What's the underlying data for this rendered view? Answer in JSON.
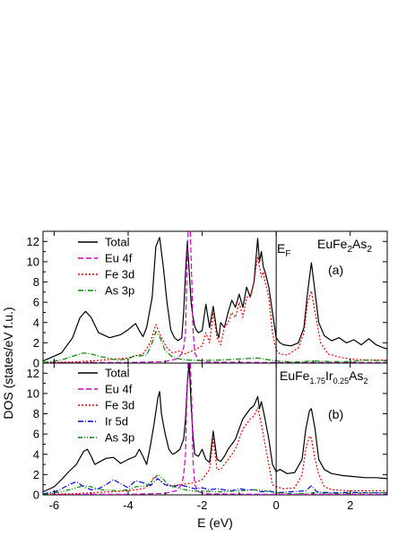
{
  "chart_data": [
    {
      "type": "line",
      "panel_label": "(a)",
      "compound": {
        "base": "EuFe",
        "s1": "2",
        "mid": "As",
        "s2": "2"
      },
      "fermi_label": {
        "main": "E",
        "sub": "F"
      },
      "xlim": [
        -6.3,
        3.0
      ],
      "ylim": [
        0,
        13
      ],
      "x_ticks": [
        -6,
        -4,
        -2,
        0,
        2
      ],
      "y_ticks": [
        0,
        2,
        4,
        6,
        8,
        10,
        12
      ],
      "y_tick_labels": [
        "0",
        "2",
        "4",
        "6",
        "8",
        "10",
        "12"
      ],
      "grid": false,
      "legend": "top-left",
      "series": [
        {
          "name": "Total",
          "color": "#000000",
          "dash": "solid",
          "x": [
            -6.3,
            -5.8,
            -5.5,
            -5.3,
            -5.15,
            -5.0,
            -4.8,
            -4.5,
            -4.2,
            -4.0,
            -3.8,
            -3.7,
            -3.6,
            -3.5,
            -3.35,
            -3.25,
            -3.15,
            -3.05,
            -2.95,
            -2.85,
            -2.75,
            -2.65,
            -2.55,
            -2.5,
            -2.45,
            -2.4,
            -2.35,
            -2.3,
            -2.25,
            -2.2,
            -2.15,
            -2.1,
            -2.0,
            -1.9,
            -1.8,
            -1.7,
            -1.6,
            -1.55,
            -1.5,
            -1.4,
            -1.3,
            -1.2,
            -1.1,
            -1.0,
            -0.9,
            -0.8,
            -0.7,
            -0.6,
            -0.5,
            -0.45,
            -0.4,
            -0.35,
            -0.3,
            -0.2,
            -0.1,
            0.0,
            0.1,
            0.2,
            0.4,
            0.6,
            0.75,
            0.85,
            0.95,
            1.05,
            1.15,
            1.3,
            1.5,
            1.7,
            1.9,
            2.1,
            2.3,
            2.5,
            2.7,
            2.9,
            3.0
          ],
          "y": [
            0.2,
            1.0,
            2.5,
            4.5,
            5.1,
            4.5,
            3.0,
            2.5,
            2.8,
            3.3,
            3.9,
            3.2,
            2.6,
            3.5,
            6.5,
            11.5,
            12.4,
            9.5,
            6.0,
            3.3,
            2.5,
            2.2,
            2.5,
            5.0,
            9.0,
            12.0,
            9.0,
            6.0,
            4.6,
            3.6,
            3.2,
            3.0,
            3.2,
            5.8,
            3.5,
            5.6,
            3.0,
            2.5,
            4.0,
            3.5,
            5.0,
            6.2,
            5.5,
            6.8,
            5.5,
            7.5,
            6.5,
            8.0,
            12.3,
            10.0,
            11.0,
            9.5,
            9.0,
            7.5,
            5.0,
            2.5,
            2.0,
            1.8,
            1.7,
            2.0,
            3.5,
            7.0,
            9.9,
            7.0,
            4.0,
            2.7,
            2.2,
            2.5,
            2.0,
            2.3,
            1.8,
            2.4,
            1.8,
            1.5,
            1.4
          ]
        },
        {
          "name": "Eu 4f",
          "color": "#cc00cc",
          "dash": "6,3",
          "x": [
            -6.3,
            -4.0,
            -3.0,
            -2.7,
            -2.55,
            -2.5,
            -2.45,
            -2.42,
            -2.38,
            -2.35,
            -2.32,
            -2.28,
            -2.25,
            -2.2,
            -2.1,
            -1.9,
            0.0,
            3.0
          ],
          "y": [
            0.05,
            0.05,
            0.15,
            0.4,
            0.9,
            1.5,
            3.0,
            8.0,
            13.0,
            13.0,
            13.0,
            8.0,
            3.5,
            1.0,
            0.3,
            0.1,
            0.05,
            0.05
          ]
        },
        {
          "name": "Fe 3d",
          "color": "#ee0000",
          "dash": "2,2",
          "x": [
            -6.3,
            -5.5,
            -5.0,
            -4.5,
            -4.0,
            -3.6,
            -3.4,
            -3.25,
            -3.1,
            -2.95,
            -2.8,
            -2.6,
            -2.45,
            -2.35,
            -2.2,
            -2.0,
            -1.9,
            -1.8,
            -1.7,
            -1.6,
            -1.5,
            -1.4,
            -1.3,
            -1.2,
            -1.1,
            -1.0,
            -0.9,
            -0.8,
            -0.7,
            -0.6,
            -0.5,
            -0.4,
            -0.35,
            -0.3,
            -0.2,
            -0.1,
            0.0,
            0.1,
            0.3,
            0.6,
            0.75,
            0.85,
            0.95,
            1.05,
            1.2,
            1.4,
            1.7,
            2.0,
            2.5,
            3.0
          ],
          "y": [
            0.05,
            0.1,
            0.2,
            0.35,
            0.5,
            0.9,
            2.0,
            3.8,
            2.5,
            1.5,
            1.0,
            1.2,
            0.9,
            1.1,
            1.3,
            1.7,
            3.0,
            2.0,
            5.0,
            2.5,
            1.8,
            3.5,
            4.0,
            5.0,
            4.5,
            6.0,
            4.5,
            6.5,
            6.5,
            8.0,
            10.5,
            8.5,
            9.0,
            8.0,
            6.5,
            3.0,
            1.3,
            0.9,
            0.8,
            1.5,
            3.0,
            6.0,
            7.1,
            5.0,
            2.0,
            0.9,
            0.6,
            0.4,
            0.3,
            0.3
          ]
        },
        {
          "name": "As 3p",
          "color": "#008800",
          "dash": "6,2,1,2",
          "x": [
            -6.3,
            -5.8,
            -5.4,
            -5.2,
            -5.0,
            -4.7,
            -4.3,
            -4.0,
            -3.8,
            -3.7,
            -3.5,
            -3.35,
            -3.25,
            -3.15,
            -3.0,
            -2.8,
            -2.6,
            -2.4,
            -2.0,
            -1.5,
            -1.0,
            -0.5,
            0.0,
            0.5,
            1.0,
            1.5,
            2.0,
            2.5,
            3.0
          ],
          "y": [
            0.05,
            0.3,
            0.8,
            1.0,
            0.9,
            0.6,
            0.3,
            0.4,
            0.8,
            0.7,
            0.8,
            2.0,
            3.1,
            2.6,
            1.2,
            0.6,
            0.4,
            0.3,
            0.25,
            0.3,
            0.4,
            0.5,
            0.2,
            0.1,
            0.2,
            0.15,
            0.15,
            0.3,
            0.2
          ]
        }
      ]
    },
    {
      "type": "line",
      "panel_label": "(b)",
      "compound": {
        "base": "EuFe",
        "s1": "1.75",
        "mid": "Ir",
        "s2": "0.25",
        "end": "As",
        "s3": "2"
      },
      "xlim": [
        -6.3,
        3.0
      ],
      "ylim": [
        0,
        13
      ],
      "x_ticks": [
        -6,
        -4,
        -2,
        0,
        2
      ],
      "x_tick_labels": [
        "-6",
        "-4",
        "-2",
        "0",
        "2"
      ],
      "y_ticks": [
        0,
        2,
        4,
        6,
        8,
        10,
        12
      ],
      "y_tick_labels": [
        "0",
        "2",
        "4",
        "6",
        "8",
        "10",
        "12"
      ],
      "xlabel": "E (eV)",
      "ylabel": "DOS (states/eV f.u.)",
      "grid": false,
      "legend": "top-left",
      "series": [
        {
          "name": "Total",
          "color": "#000000",
          "dash": "solid",
          "x": [
            -6.3,
            -6.0,
            -5.8,
            -5.6,
            -5.4,
            -5.2,
            -5.1,
            -5.0,
            -4.9,
            -4.8,
            -4.6,
            -4.4,
            -4.2,
            -4.0,
            -3.8,
            -3.7,
            -3.6,
            -3.5,
            -3.4,
            -3.3,
            -3.2,
            -3.15,
            -3.1,
            -3.0,
            -2.9,
            -2.8,
            -2.7,
            -2.6,
            -2.5,
            -2.45,
            -2.4,
            -2.35,
            -2.3,
            -2.25,
            -2.2,
            -2.1,
            -2.0,
            -1.9,
            -1.8,
            -1.7,
            -1.6,
            -1.5,
            -1.4,
            -1.3,
            -1.2,
            -1.1,
            -1.0,
            -0.9,
            -0.8,
            -0.7,
            -0.6,
            -0.5,
            -0.45,
            -0.4,
            -0.3,
            -0.2,
            -0.1,
            0.0,
            0.1,
            0.3,
            0.5,
            0.7,
            0.8,
            0.9,
            0.95,
            1.05,
            1.15,
            1.3,
            1.5,
            1.8,
            2.1,
            2.4,
            2.7,
            3.0
          ],
          "y": [
            0.3,
            0.8,
            1.5,
            2.3,
            3.0,
            4.3,
            4.5,
            3.8,
            3.0,
            3.2,
            3.6,
            3.7,
            3.1,
            3.5,
            3.8,
            4.5,
            3.8,
            3.0,
            4.8,
            7.0,
            9.5,
            10.2,
            8.0,
            6.0,
            4.5,
            4.0,
            4.2,
            4.5,
            5.5,
            7.5,
            11.0,
            13.0,
            9.0,
            6.0,
            4.0,
            3.8,
            4.5,
            3.5,
            3.2,
            6.3,
            3.5,
            3.3,
            3.8,
            4.5,
            5.0,
            5.5,
            6.5,
            7.5,
            8.0,
            8.5,
            8.8,
            9.7,
            8.5,
            9.2,
            7.5,
            5.5,
            3.0,
            2.3,
            2.5,
            2.1,
            2.2,
            3.5,
            6.5,
            8.3,
            8.5,
            6.5,
            3.5,
            2.5,
            2.1,
            1.9,
            1.8,
            1.7,
            1.7,
            1.6
          ]
        },
        {
          "name": "Eu 4f",
          "color": "#cc00cc",
          "dash": "6,3",
          "x": [
            -6.3,
            -4.0,
            -3.0,
            -2.7,
            -2.55,
            -2.5,
            -2.45,
            -2.42,
            -2.38,
            -2.35,
            -2.32,
            -2.28,
            -2.25,
            -2.2,
            -2.1,
            -1.9,
            0.0,
            3.0
          ],
          "y": [
            0.05,
            0.05,
            0.15,
            0.4,
            1.0,
            2.0,
            4.0,
            9.0,
            13.0,
            13.0,
            13.0,
            9.0,
            3.5,
            1.0,
            0.3,
            0.1,
            0.05,
            0.05
          ]
        },
        {
          "name": "Fe 3d",
          "color": "#ee0000",
          "dash": "2,2",
          "x": [
            -6.3,
            -5.5,
            -5.0,
            -4.5,
            -4.0,
            -3.6,
            -3.4,
            -3.3,
            -3.2,
            -3.0,
            -2.8,
            -2.6,
            -2.4,
            -2.2,
            -2.0,
            -1.8,
            -1.7,
            -1.6,
            -1.5,
            -1.4,
            -1.3,
            -1.2,
            -1.1,
            -1.0,
            -0.9,
            -0.8,
            -0.7,
            -0.6,
            -0.5,
            -0.4,
            -0.3,
            -0.2,
            -0.1,
            0.0,
            0.2,
            0.5,
            0.7,
            0.8,
            0.9,
            0.95,
            1.05,
            1.15,
            1.3,
            1.5,
            2.0,
            2.5,
            3.0
          ],
          "y": [
            0.05,
            0.1,
            0.2,
            0.3,
            0.4,
            0.6,
            1.0,
            1.8,
            1.6,
            1.0,
            0.9,
            1.0,
            1.1,
            1.2,
            1.5,
            2.5,
            5.5,
            2.5,
            2.5,
            3.0,
            3.5,
            4.0,
            4.5,
            5.5,
            6.5,
            7.0,
            7.5,
            7.8,
            8.6,
            7.0,
            5.0,
            3.0,
            1.0,
            0.8,
            0.6,
            0.7,
            2.0,
            4.5,
            5.8,
            5.6,
            3.5,
            2.0,
            0.8,
            0.5,
            0.4,
            0.4,
            0.4
          ]
        },
        {
          "name": "Ir  5d",
          "color": "#0000ee",
          "dash": "6,2,1,2",
          "x": [
            -6.3,
            -5.9,
            -5.6,
            -5.4,
            -5.2,
            -5.0,
            -4.8,
            -4.6,
            -4.4,
            -4.2,
            -4.0,
            -3.8,
            -3.6,
            -3.4,
            -3.2,
            -3.0,
            -2.8,
            -2.6,
            -2.4,
            -2.2,
            -2.0,
            -1.8,
            -1.6,
            -1.4,
            -1.2,
            -1.0,
            -0.8,
            -0.6,
            -0.4,
            -0.2,
            0.0,
            0.4,
            0.8,
            0.95,
            1.1,
            1.5,
            2.0,
            2.5,
            3.0
          ],
          "y": [
            0.1,
            0.4,
            1.0,
            1.3,
            0.8,
            0.5,
            0.6,
            1.0,
            1.5,
            1.1,
            0.7,
            1.4,
            1.2,
            0.9,
            1.6,
            1.0,
            0.8,
            1.0,
            0.8,
            0.6,
            0.7,
            0.5,
            0.6,
            0.5,
            0.4,
            0.6,
            0.5,
            0.5,
            0.3,
            0.4,
            0.2,
            0.3,
            0.4,
            0.9,
            0.3,
            0.2,
            0.25,
            0.2,
            0.2
          ]
        },
        {
          "name": "As 3p",
          "color": "#008800",
          "dash": "5,2,1,2,1,2",
          "x": [
            -6.3,
            -5.8,
            -5.4,
            -5.2,
            -5.0,
            -4.7,
            -4.3,
            -4.0,
            -3.8,
            -3.5,
            -3.3,
            -3.2,
            -3.1,
            -2.9,
            -2.6,
            -2.3,
            -2.0,
            -1.5,
            -1.0,
            -0.5,
            0.0,
            0.5,
            1.0,
            1.5,
            2.0,
            2.5,
            3.0
          ],
          "y": [
            0.05,
            0.3,
            0.7,
            0.9,
            0.8,
            0.5,
            0.4,
            0.5,
            0.8,
            0.9,
            1.6,
            2.0,
            1.7,
            1.0,
            0.6,
            0.4,
            0.35,
            0.3,
            0.4,
            0.5,
            0.2,
            0.1,
            0.2,
            0.15,
            0.15,
            0.2,
            0.2
          ]
        }
      ]
    }
  ]
}
